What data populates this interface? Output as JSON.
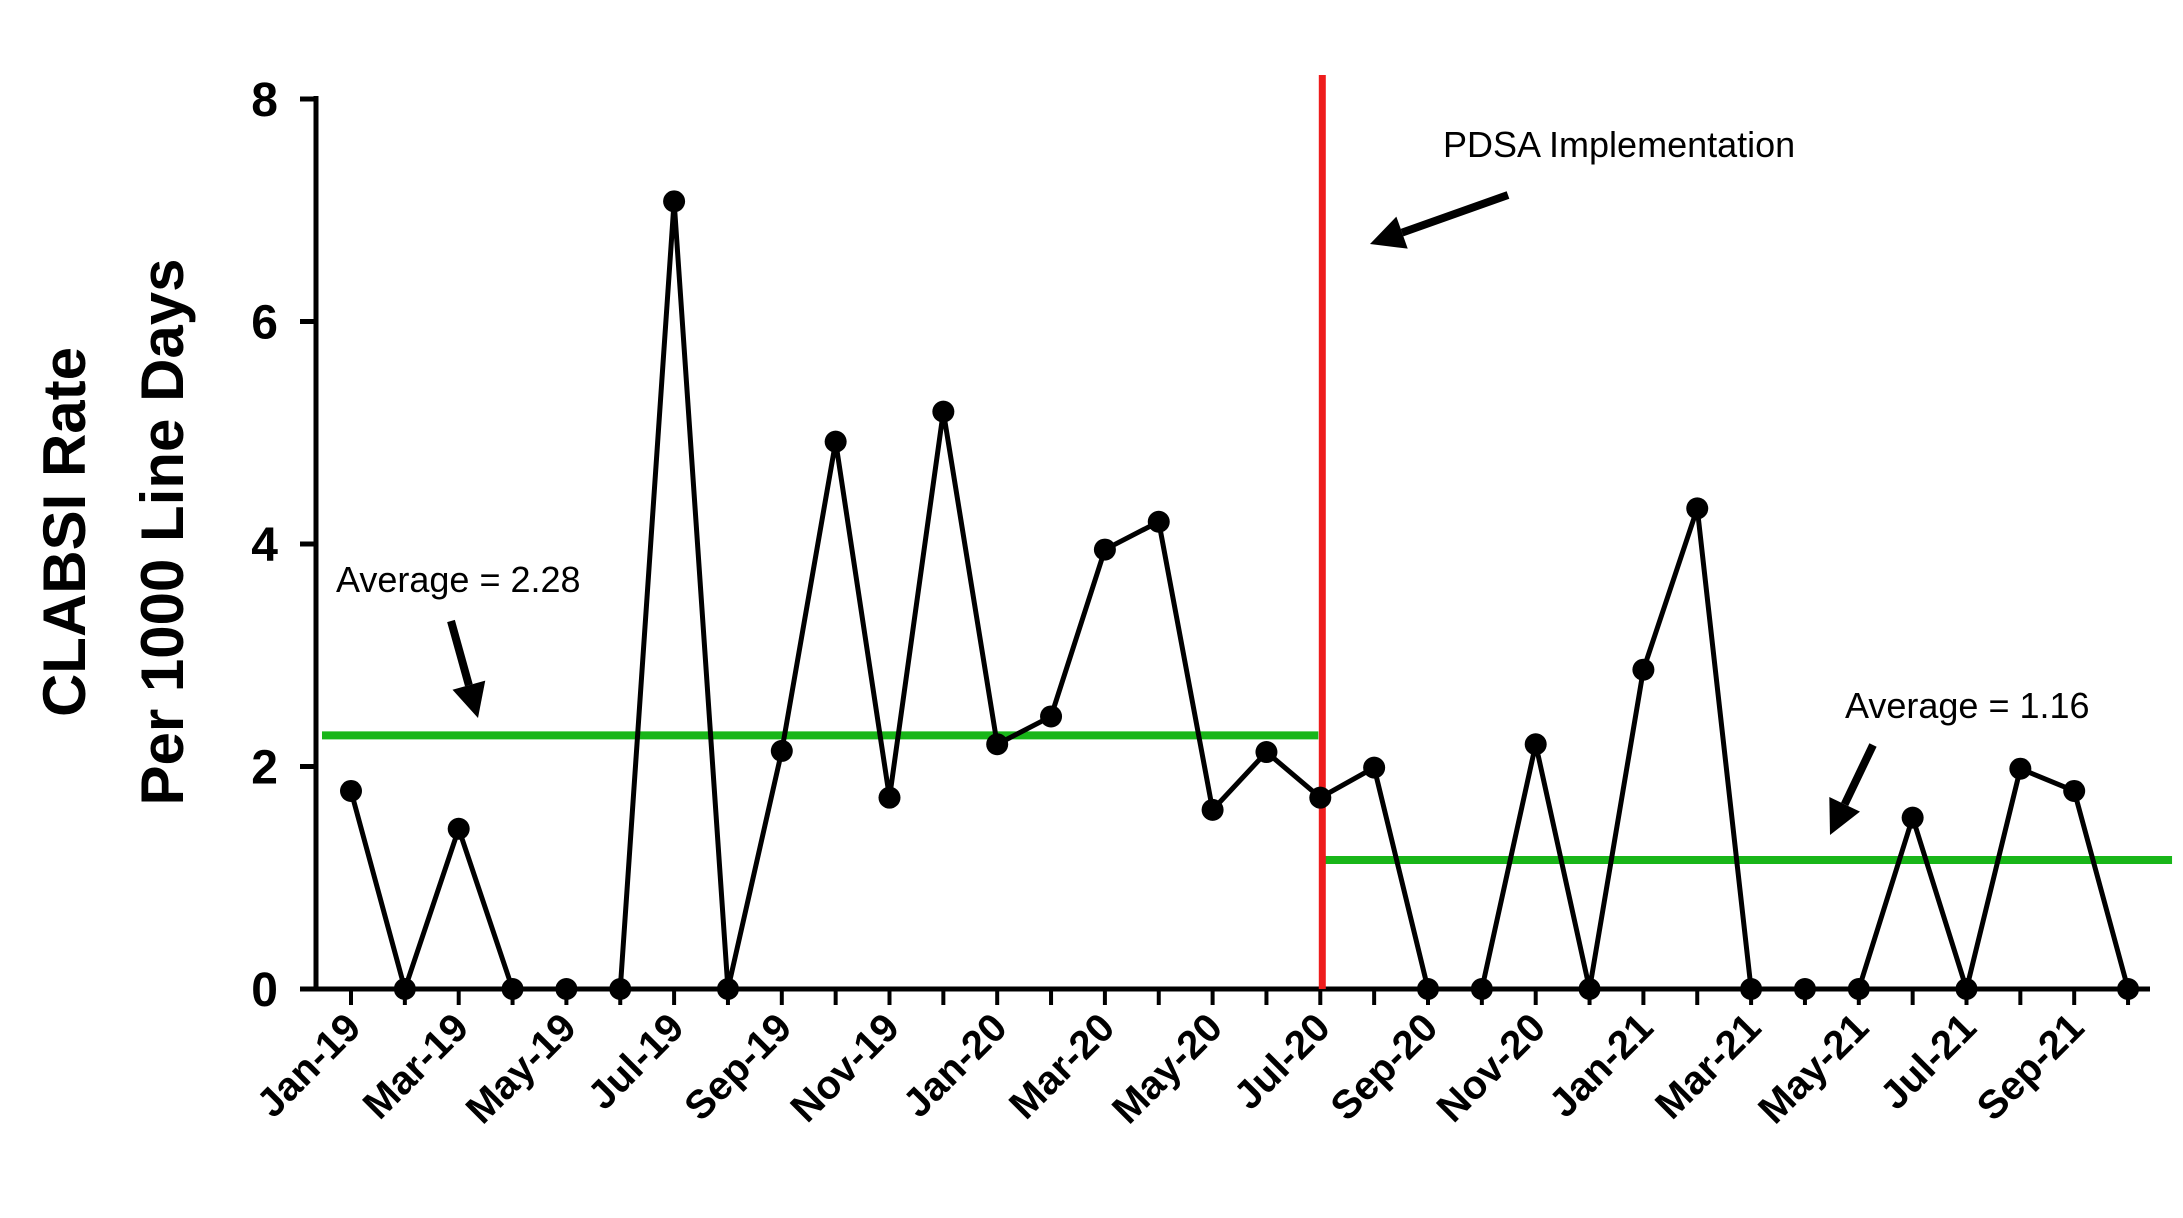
{
  "chart_data": {
    "type": "line",
    "title": "",
    "xlabel": "",
    "ylabel_lines": [
      "CLABSI Rate",
      "Per 1000 Line Days"
    ],
    "ylim": [
      0,
      8
    ],
    "yticks": [
      0,
      2,
      4,
      6,
      8
    ],
    "grid": false,
    "x": [
      "Jan-19",
      "Feb-19",
      "Mar-19",
      "Apr-19",
      "May-19",
      "Jun-19",
      "Jul-19",
      "Aug-19",
      "Sep-19",
      "Oct-19",
      "Nov-19",
      "Dec-19",
      "Jan-20",
      "Feb-20",
      "Mar-20",
      "Apr-20",
      "May-20",
      "Jun-20",
      "Jul-20",
      "Aug-20",
      "Sep-20",
      "Oct-20",
      "Nov-20",
      "Dec-20",
      "Jan-21",
      "Feb-21",
      "Mar-21",
      "Apr-21",
      "May-21",
      "Jun-21",
      "Jul-21",
      "Aug-21",
      "Sep-21",
      "Oct-21"
    ],
    "x_tick_labels": [
      "Jan-19",
      "Mar-19",
      "May-19",
      "Jul-19",
      "Sep-19",
      "Nov-19",
      "Jan-20",
      "Mar-20",
      "May-20",
      "Jul-20",
      "Sep-20",
      "Nov-20",
      "Jan-21",
      "Mar-21",
      "May-21",
      "Jul-21",
      "Sep-21"
    ],
    "series": [
      {
        "values": [
          1.78,
          0,
          1.44,
          0,
          0,
          0,
          7.08,
          0,
          2.14,
          4.92,
          1.72,
          5.19,
          2.2,
          2.45,
          3.95,
          4.2,
          1.61,
          2.13,
          1.72,
          1.99,
          0,
          0,
          2.2,
          0,
          2.87,
          4.32,
          0,
          0,
          0,
          1.54,
          0,
          1.98,
          1.78,
          0
        ],
        "color": "#000000"
      }
    ],
    "intervention": {
      "at": "Jul-20",
      "color": "#ee1c1c",
      "label": "PDSA Implementation"
    },
    "averages": [
      {
        "value": 2.28,
        "from": "Jan-19",
        "to": "Jul-20",
        "label": "Average = 2.28",
        "color": "#19b619"
      },
      {
        "value": 1.16,
        "from": "Jul-20",
        "to": "Oct-21",
        "label": "Average = 1.16",
        "color": "#19b619"
      }
    ]
  }
}
